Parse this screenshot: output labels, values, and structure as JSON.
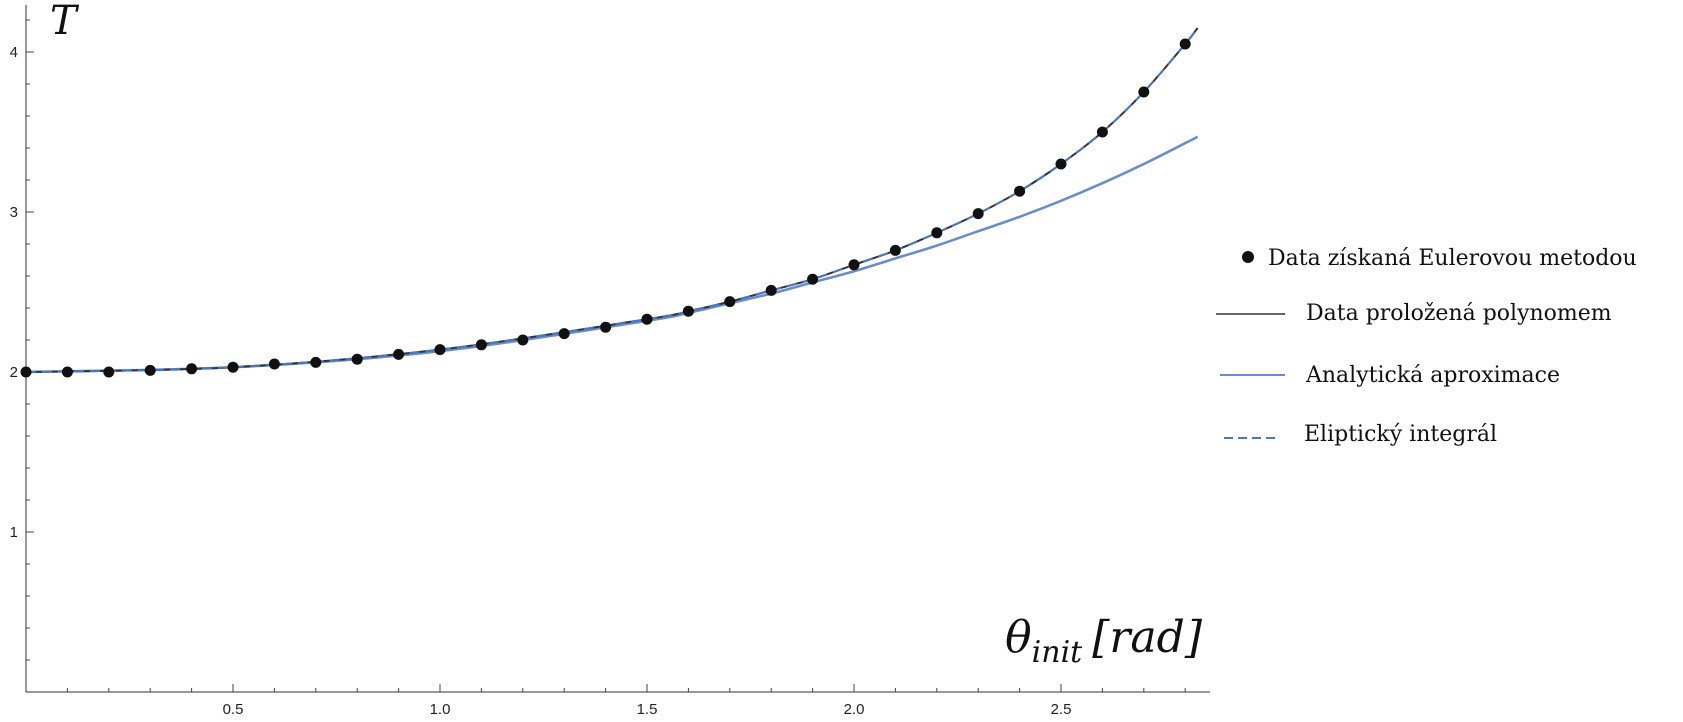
{
  "chart_data": {
    "type": "scatter",
    "title": "",
    "ylabel": "T",
    "xlabel": {
      "main": "θ",
      "subscript": "init",
      "unit": "[rad]"
    },
    "xlim": [
      0,
      2.85
    ],
    "ylim": [
      0,
      4.2
    ],
    "x_ticks": [
      "0.5",
      "1.0",
      "1.5",
      "2.0",
      "2.5"
    ],
    "y_ticks": [
      "1",
      "2",
      "3",
      "4"
    ],
    "legend_position": "right",
    "series": [
      {
        "name": "Data získaná Eulerovou metodou",
        "kind": "points",
        "color": "#111111",
        "x": [
          0,
          0.1,
          0.2,
          0.3,
          0.4,
          0.5,
          0.6,
          0.7,
          0.8,
          0.9,
          1.0,
          1.1,
          1.2,
          1.3,
          1.4,
          1.5,
          1.6,
          1.7,
          1.8,
          1.9,
          2.0,
          2.1,
          2.2,
          2.3,
          2.4,
          2.5,
          2.6,
          2.7,
          2.8
        ],
        "y": [
          2.0,
          2.0,
          2.0,
          2.01,
          2.02,
          2.03,
          2.05,
          2.06,
          2.08,
          2.11,
          2.14,
          2.17,
          2.2,
          2.24,
          2.28,
          2.33,
          2.38,
          2.44,
          2.51,
          2.58,
          2.67,
          2.76,
          2.87,
          2.99,
          3.13,
          3.3,
          3.5,
          3.75,
          4.05
        ]
      },
      {
        "name": "Data proložená polynomem",
        "kind": "line",
        "color": "#333333",
        "x": [
          0,
          0.5,
          1.0,
          1.5,
          1.6,
          1.7,
          1.8,
          1.9,
          2.0,
          2.1,
          2.2,
          2.3,
          2.4,
          2.5,
          2.6,
          2.7,
          2.8,
          2.83
        ],
        "y": [
          2.0,
          2.03,
          2.14,
          2.33,
          2.38,
          2.44,
          2.51,
          2.58,
          2.67,
          2.76,
          2.87,
          2.99,
          3.13,
          3.3,
          3.5,
          3.75,
          4.05,
          4.15
        ]
      },
      {
        "name": "Analytická aproximace",
        "kind": "line",
        "color": "#6a8fc7",
        "x": [
          0,
          0.5,
          1.0,
          1.5,
          1.6,
          1.7,
          1.8,
          1.9,
          2.0,
          2.1,
          2.2,
          2.3,
          2.4,
          2.5,
          2.6,
          2.7,
          2.8,
          2.83
        ],
        "y": [
          2.0,
          2.03,
          2.13,
          2.32,
          2.37,
          2.43,
          2.49,
          2.56,
          2.63,
          2.71,
          2.79,
          2.88,
          2.97,
          3.07,
          3.18,
          3.3,
          3.43,
          3.47
        ]
      },
      {
        "name": "Eliptický integrál",
        "kind": "dashed",
        "color": "#4a78c2",
        "x": [
          0,
          0.5,
          1.0,
          1.5,
          1.6,
          1.7,
          1.8,
          1.9,
          2.0,
          2.1,
          2.2,
          2.3,
          2.4,
          2.5,
          2.6,
          2.7,
          2.8,
          2.83
        ],
        "y": [
          2.0,
          2.03,
          2.14,
          2.33,
          2.38,
          2.44,
          2.51,
          2.58,
          2.67,
          2.76,
          2.87,
          2.99,
          3.13,
          3.3,
          3.5,
          3.75,
          4.05,
          4.15
        ]
      }
    ]
  }
}
